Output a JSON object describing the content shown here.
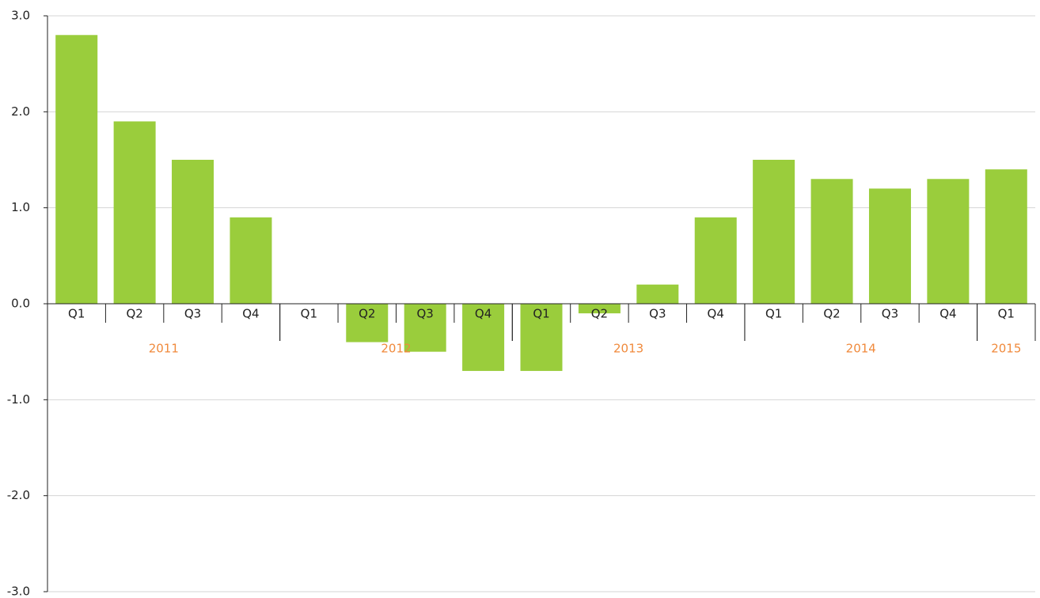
{
  "chart_data": {
    "type": "bar",
    "groups": [
      {
        "name": "2011",
        "categories": [
          "Q1",
          "Q2",
          "Q3",
          "Q4"
        ],
        "values": [
          2.8,
          1.9,
          1.5,
          0.9
        ]
      },
      {
        "name": "2012",
        "categories": [
          "Q1",
          "Q2",
          "Q3",
          "Q4"
        ],
        "values": [
          0.0,
          -0.4,
          -0.5,
          -0.7
        ]
      },
      {
        "name": "2013",
        "categories": [
          "Q1",
          "Q2",
          "Q3",
          "Q4"
        ],
        "values": [
          -0.7,
          -0.1,
          0.2,
          0.9
        ]
      },
      {
        "name": "2014",
        "categories": [
          "Q1",
          "Q2",
          "Q3",
          "Q4"
        ],
        "values": [
          1.5,
          1.3,
          1.2,
          1.3
        ]
      },
      {
        "name": "2015",
        "categories": [
          "Q1"
        ],
        "values": [
          1.4
        ]
      }
    ],
    "color": "#9acd3c",
    "group_label_color": "#f08a3c",
    "ylim": [
      -3,
      3
    ],
    "yticks": [
      {
        "value": -3,
        "label": "-3.0"
      },
      {
        "value": -2,
        "label": "-2.0"
      },
      {
        "value": -1,
        "label": "-1.0"
      },
      {
        "value": 0,
        "label": "0.0"
      },
      {
        "value": 1,
        "label": "1.0"
      },
      {
        "value": 2,
        "label": "2.0"
      },
      {
        "value": 3,
        "label": "3.0"
      }
    ],
    "grid": true
  }
}
